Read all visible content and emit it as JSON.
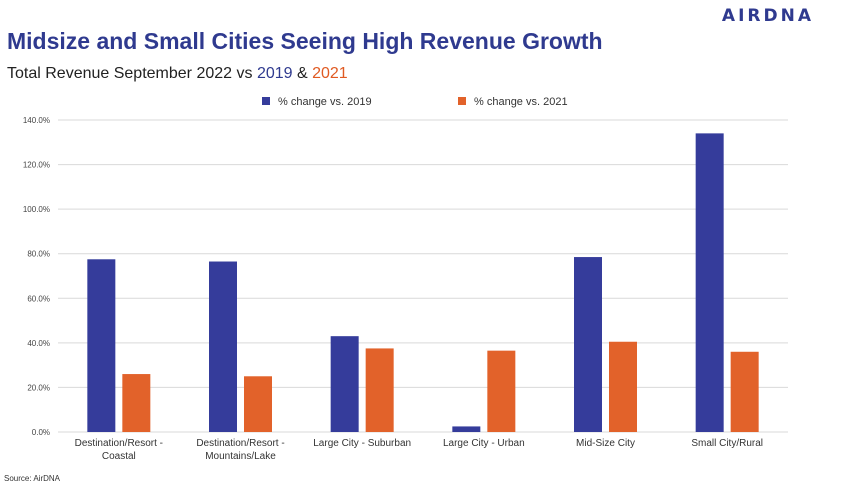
{
  "brand": {
    "logo_text": "AIRDNA"
  },
  "chart_data": {
    "type": "bar",
    "title": "Midsize and Small Cities Seeing High Revenue Growth",
    "subtitle_prefix": "Total Revenue September 2022 vs ",
    "subtitle_year_a": "2019",
    "subtitle_sep": " & ",
    "subtitle_year_b": "2021",
    "categories": [
      [
        "Destination/Resort -",
        "Coastal"
      ],
      [
        "Destination/Resort -",
        "Mountains/Lake"
      ],
      [
        "Large City - Suburban"
      ],
      [
        "Large City - Urban"
      ],
      [
        "Mid-Size City"
      ],
      [
        "Small City/Rural"
      ]
    ],
    "series": [
      {
        "name": "% change vs. 2019",
        "color": "#353c9b",
        "values": [
          77.5,
          76.5,
          43.0,
          2.5,
          78.5,
          134.0
        ]
      },
      {
        "name": "% change vs. 2021",
        "color": "#e2622a",
        "values": [
          26.0,
          25.0,
          37.5,
          36.5,
          40.5,
          36.0
        ]
      }
    ],
    "ylim": [
      0,
      140
    ],
    "yticks": [
      "0.0%",
      "20.0%",
      "40.0%",
      "60.0%",
      "80.0%",
      "100.0%",
      "120.0%",
      "140.0%"
    ],
    "ytick_values": [
      0,
      20,
      40,
      60,
      80,
      100,
      120,
      140
    ],
    "grid": true,
    "legend_position": "top-center",
    "source": "Source: AirDNA"
  }
}
